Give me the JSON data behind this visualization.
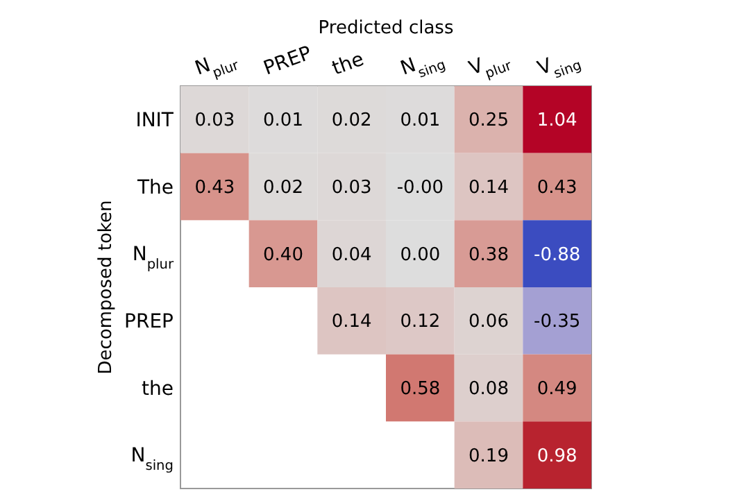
{
  "chart_data": {
    "type": "heatmap",
    "xlabel": "Predicted class",
    "ylabel": "Decomposed token",
    "categories": [
      "N$_{plur}$",
      "PREP",
      "the",
      "N$_{sing}$",
      "V$_{plur}$",
      "V$_{sing}$"
    ],
    "y_categories": [
      "INIT",
      "The",
      "N$_{plur}$",
      "PREP",
      "the",
      "N$_{sing}$"
    ],
    "cells": [
      [
        0.03,
        0.01,
        0.02,
        0.01,
        0.25,
        1.04
      ],
      [
        0.43,
        0.02,
        0.03,
        0.0,
        0.14,
        0.43
      ],
      [
        null,
        0.4,
        0.04,
        0.0,
        0.38,
        -0.88
      ],
      [
        null,
        null,
        0.14,
        0.12,
        0.06,
        -0.35
      ],
      [
        null,
        null,
        null,
        0.58,
        0.08,
        0.49
      ],
      [
        null,
        null,
        null,
        null,
        0.19,
        0.98
      ]
    ],
    "cell_labels": [
      [
        "0.03",
        "0.01",
        "0.02",
        "0.01",
        "0.25",
        "1.04"
      ],
      [
        "0.43",
        "0.02",
        "0.03",
        "-0.00",
        "0.14",
        "0.43"
      ],
      [
        null,
        "0.40",
        "0.04",
        "0.00",
        "0.38",
        "-0.88"
      ],
      [
        null,
        null,
        "0.14",
        "0.12",
        "0.06",
        "-0.35"
      ],
      [
        null,
        null,
        null,
        "0.58",
        "0.08",
        "0.49"
      ],
      [
        null,
        null,
        null,
        null,
        "0.19",
        "0.98"
      ]
    ]
  }
}
